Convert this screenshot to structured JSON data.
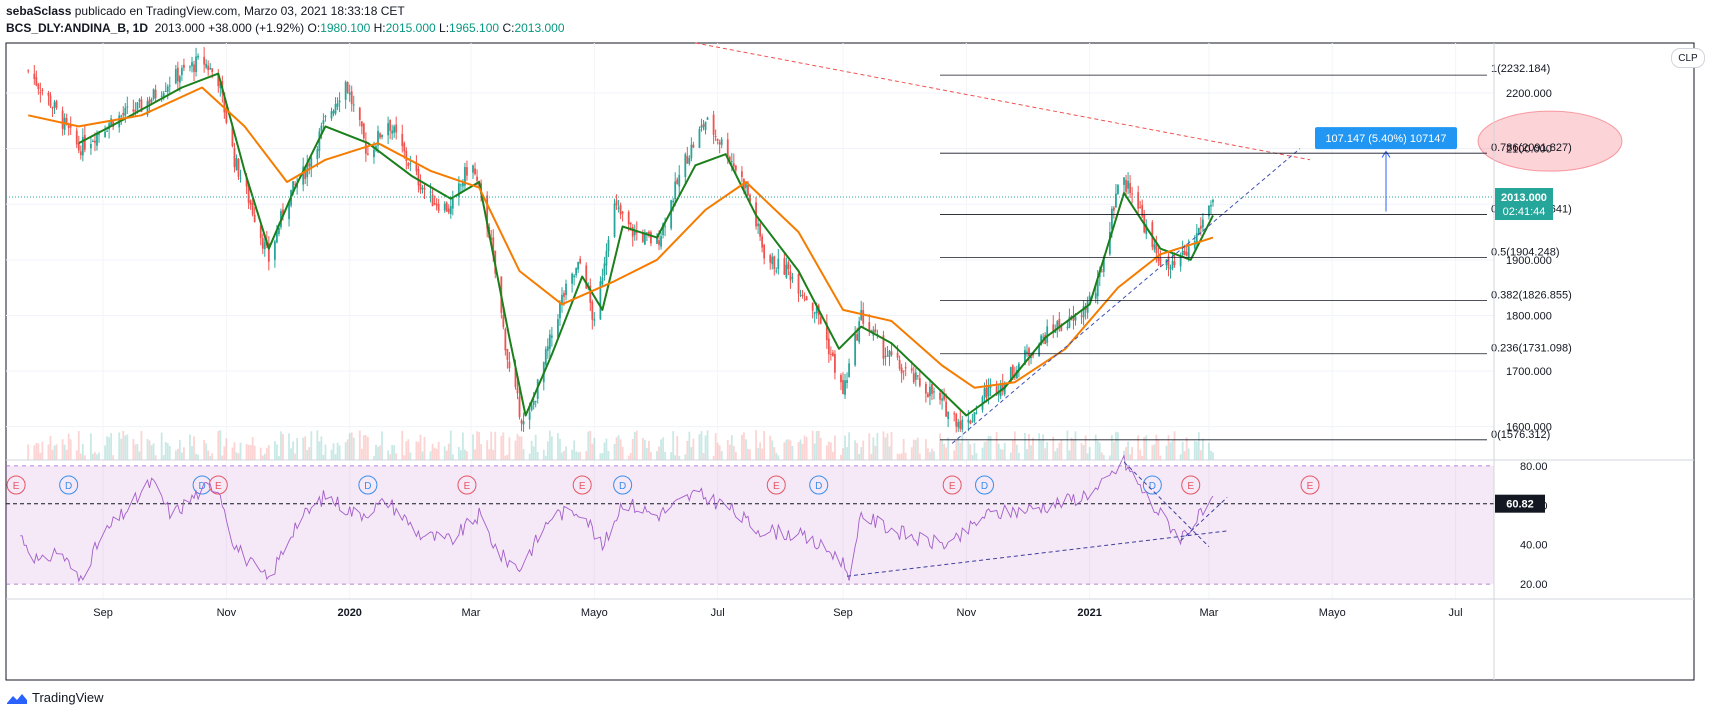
{
  "header": {
    "author": "sebaSclass",
    "published": "publicado en TradingView.com, Marzo 03, 2021 18:33:18 CET",
    "symbol": "BCS_DLY:ANDINA_B, 1D",
    "last": "2013.000",
    "change": "+38.000 (+1.92%)",
    "o_label": "O:",
    "o": "1980.100",
    "h_label": "H:",
    "h": "2015.000",
    "l_label": "L:",
    "l": "1965.100",
    "c_label": "C:",
    "c": "2013.000"
  },
  "currency_badge": "CLP",
  "price_tag": {
    "price": "2013.000",
    "countdown": "02:41:44"
  },
  "rsi_tag": "60.82",
  "measure_label": "107.147 (5.40%) 107147",
  "footer": {
    "brand": "TradingView"
  },
  "colors": {
    "up": "#26a69a",
    "down": "#ef5350",
    "ema_fast": "#1b7f1b",
    "ema_slow": "#f57c00",
    "rsi": "#a35fc9",
    "accent": "#2962ff"
  },
  "chart_data": [
    {
      "type": "candlestick",
      "y_axis_ticks": [
        "1600.000",
        "1700.000",
        "1800.000",
        "1900.000",
        "2000.000",
        "2100.000",
        "2200.000"
      ],
      "ylim": [
        1540,
        2290
      ],
      "x_axis_ticks": [
        "Sep",
        "Nov",
        "2020",
        "Mar",
        "Mayo",
        "Jul",
        "Sep",
        "Nov",
        "2021",
        "Mar",
        "Mayo",
        "Jul"
      ],
      "last_price": 2013.0,
      "close_path": [
        [
          "2019-07-26",
          2240
        ],
        [
          "2019-08-05",
          2190
        ],
        [
          "2019-08-20",
          2100
        ],
        [
          "2019-09-05",
          2150
        ],
        [
          "2019-09-20",
          2175
        ],
        [
          "2019-10-05",
          2225
        ],
        [
          "2019-10-20",
          2260
        ],
        [
          "2019-10-28",
          2225
        ],
        [
          "2019-11-05",
          2080
        ],
        [
          "2019-11-15",
          1980
        ],
        [
          "2019-11-22",
          1900
        ],
        [
          "2019-12-01",
          2010
        ],
        [
          "2019-12-10",
          2060
        ],
        [
          "2019-12-20",
          2150
        ],
        [
          "2019-12-30",
          2220
        ],
        [
          "2020-01-10",
          2090
        ],
        [
          "2020-01-20",
          2150
        ],
        [
          "2020-02-01",
          2060
        ],
        [
          "2020-02-10",
          2010
        ],
        [
          "2020-02-20",
          1990
        ],
        [
          "2020-03-01",
          2080
        ],
        [
          "2020-03-10",
          1950
        ],
        [
          "2020-03-20",
          1700
        ],
        [
          "2020-03-28",
          1590
        ],
        [
          "2020-04-05",
          1700
        ],
        [
          "2020-04-15",
          1830
        ],
        [
          "2020-04-25",
          1900
        ],
        [
          "2020-05-01",
          1780
        ],
        [
          "2020-05-10",
          2000
        ],
        [
          "2020-05-20",
          1950
        ],
        [
          "2020-06-01",
          1930
        ],
        [
          "2020-06-15",
          2080
        ],
        [
          "2020-06-25",
          2150
        ],
        [
          "2020-07-05",
          2100
        ],
        [
          "2020-07-15",
          2030
        ],
        [
          "2020-07-25",
          1900
        ],
        [
          "2020-08-05",
          1880
        ],
        [
          "2020-08-20",
          1800
        ],
        [
          "2020-09-01",
          1660
        ],
        [
          "2020-09-10",
          1800
        ],
        [
          "2020-09-20",
          1740
        ],
        [
          "2020-10-01",
          1700
        ],
        [
          "2020-10-15",
          1660
        ],
        [
          "2020-10-25",
          1620
        ],
        [
          "2020-11-01",
          1600
        ],
        [
          "2020-11-10",
          1660
        ],
        [
          "2020-11-20",
          1680
        ],
        [
          "2020-12-01",
          1730
        ],
        [
          "2020-12-15",
          1780
        ],
        [
          "2020-12-25",
          1790
        ],
        [
          "2021-01-05",
          1850
        ],
        [
          "2021-01-15",
          2040
        ],
        [
          "2021-01-22",
          2030
        ],
        [
          "2021-02-01",
          1920
        ],
        [
          "2021-02-10",
          1880
        ],
        [
          "2021-02-20",
          1920
        ],
        [
          "2021-03-03",
          2013
        ]
      ],
      "series": [
        {
          "name": "",
          "kind": "ema_fast",
          "points": [
            [
              "2019-08-20",
              2110
            ],
            [
              "2019-09-10",
              2150
            ],
            [
              "2019-10-10",
              2210
            ],
            [
              "2019-10-28",
              2235
            ],
            [
              "2019-11-10",
              2060
            ],
            [
              "2019-11-22",
              1920
            ],
            [
              "2019-12-05",
              2030
            ],
            [
              "2019-12-20",
              2140
            ],
            [
              "2020-01-10",
              2110
            ],
            [
              "2020-02-01",
              2050
            ],
            [
              "2020-02-20",
              2010
            ],
            [
              "2020-03-05",
              2040
            ],
            [
              "2020-03-20",
              1760
            ],
            [
              "2020-03-28",
              1620
            ],
            [
              "2020-04-10",
              1730
            ],
            [
              "2020-04-25",
              1870
            ],
            [
              "2020-05-05",
              1810
            ],
            [
              "2020-05-15",
              1960
            ],
            [
              "2020-06-01",
              1940
            ],
            [
              "2020-06-20",
              2070
            ],
            [
              "2020-07-05",
              2090
            ],
            [
              "2020-07-20",
              1980
            ],
            [
              "2020-08-10",
              1880
            ],
            [
              "2020-08-30",
              1740
            ],
            [
              "2020-09-10",
              1780
            ],
            [
              "2020-09-25",
              1750
            ],
            [
              "2020-10-15",
              1680
            ],
            [
              "2020-11-01",
              1620
            ],
            [
              "2020-11-20",
              1670
            ],
            [
              "2020-12-10",
              1760
            ],
            [
              "2021-01-01",
              1820
            ],
            [
              "2021-01-18",
              2020
            ],
            [
              "2021-02-05",
              1920
            ],
            [
              "2021-02-20",
              1900
            ],
            [
              "2021-03-03",
              1980
            ]
          ]
        },
        {
          "name": "",
          "kind": "ema_slow",
          "points": [
            [
              "2019-07-26",
              2160
            ],
            [
              "2019-08-20",
              2140
            ],
            [
              "2019-09-20",
              2160
            ],
            [
              "2019-10-20",
              2210
            ],
            [
              "2019-11-10",
              2140
            ],
            [
              "2019-12-01",
              2040
            ],
            [
              "2019-12-20",
              2080
            ],
            [
              "2020-01-15",
              2110
            ],
            [
              "2020-02-10",
              2060
            ],
            [
              "2020-03-05",
              2030
            ],
            [
              "2020-03-25",
              1880
            ],
            [
              "2020-04-15",
              1820
            ],
            [
              "2020-05-10",
              1860
            ],
            [
              "2020-06-01",
              1900
            ],
            [
              "2020-06-25",
              1990
            ],
            [
              "2020-07-15",
              2040
            ],
            [
              "2020-08-10",
              1950
            ],
            [
              "2020-09-01",
              1810
            ],
            [
              "2020-09-25",
              1790
            ],
            [
              "2020-10-20",
              1710
            ],
            [
              "2020-11-05",
              1670
            ],
            [
              "2020-11-25",
              1680
            ],
            [
              "2020-12-20",
              1740
            ],
            [
              "2021-01-15",
              1850
            ],
            [
              "2021-02-05",
              1910
            ],
            [
              "2021-03-03",
              1940
            ]
          ]
        }
      ],
      "fibonacci": [
        {
          "label": "1(2232.184)",
          "price": 2232.184
        },
        {
          "label": "0.786(2091.827)",
          "price": 2091.827
        },
        {
          "label": "0.618(1981.641)",
          "price": 1981.641
        },
        {
          "label": "0.5(1904.248)",
          "price": 1904.248
        },
        {
          "label": "0.382(1826.855)",
          "price": 1826.855
        },
        {
          "label": "0.236(1731.098)",
          "price": 1731.098
        },
        {
          "label": "0(1576.312)",
          "price": 1576.312
        }
      ],
      "events": [
        {
          "label": "E",
          "date": "2019-07-20"
        },
        {
          "label": "D",
          "date": "2019-08-15"
        },
        {
          "label": "D",
          "date": "2019-10-20"
        },
        {
          "label": "E",
          "date": "2019-10-28"
        },
        {
          "label": "D",
          "date": "2020-01-10"
        },
        {
          "label": "E",
          "date": "2020-02-28"
        },
        {
          "label": "E",
          "date": "2020-04-25"
        },
        {
          "label": "D",
          "date": "2020-05-15"
        },
        {
          "label": "E",
          "date": "2020-07-30"
        },
        {
          "label": "D",
          "date": "2020-08-20"
        },
        {
          "label": "E",
          "date": "2020-10-25"
        },
        {
          "label": "D",
          "date": "2020-11-10"
        },
        {
          "label": "D",
          "date": "2021-02-01"
        },
        {
          "label": "E",
          "date": "2021-02-20"
        },
        {
          "label": "E",
          "date": "2021-04-20"
        }
      ]
    },
    {
      "type": "line",
      "y_axis_ticks": [
        "20.00",
        "40.00",
        "60.00",
        "80.00"
      ],
      "ylim": [
        17,
        83
      ],
      "levels": [
        20,
        80
      ],
      "last_value": 60.82,
      "series": [
        {
          "name": "",
          "kind": "rsi",
          "points": [
            [
              "2019-07-20",
              48
            ],
            [
              "2019-08-01",
              30
            ],
            [
              "2019-08-10",
              38
            ],
            [
              "2019-08-20",
              22
            ],
            [
              "2019-09-01",
              45
            ],
            [
              "2019-09-15",
              60
            ],
            [
              "2019-09-25",
              72
            ],
            [
              "2019-10-05",
              55
            ],
            [
              "2019-10-20",
              68
            ],
            [
              "2019-10-28",
              70
            ],
            [
              "2019-11-05",
              40
            ],
            [
              "2019-11-15",
              28
            ],
            [
              "2019-11-22",
              22
            ],
            [
              "2019-12-05",
              50
            ],
            [
              "2019-12-20",
              65
            ],
            [
              "2020-01-05",
              55
            ],
            [
              "2020-01-20",
              62
            ],
            [
              "2020-02-05",
              45
            ],
            [
              "2020-02-20",
              42
            ],
            [
              "2020-03-05",
              55
            ],
            [
              "2020-03-15",
              35
            ],
            [
              "2020-03-25",
              28
            ],
            [
              "2020-04-10",
              55
            ],
            [
              "2020-04-25",
              58
            ],
            [
              "2020-05-05",
              38
            ],
            [
              "2020-05-15",
              62
            ],
            [
              "2020-06-01",
              55
            ],
            [
              "2020-06-20",
              66
            ],
            [
              "2020-07-05",
              60
            ],
            [
              "2020-07-20",
              48
            ],
            [
              "2020-08-10",
              45
            ],
            [
              "2020-08-30",
              34
            ],
            [
              "2020-09-05",
              24
            ],
            [
              "2020-09-10",
              55
            ],
            [
              "2020-09-25",
              48
            ],
            [
              "2020-10-10",
              42
            ],
            [
              "2020-10-25",
              40
            ],
            [
              "2020-11-10",
              55
            ],
            [
              "2020-12-01",
              58
            ],
            [
              "2020-12-20",
              62
            ],
            [
              "2021-01-05",
              68
            ],
            [
              "2021-01-18",
              82
            ],
            [
              "2021-02-01",
              60
            ],
            [
              "2021-02-15",
              44
            ],
            [
              "2021-02-25",
              55
            ],
            [
              "2021-03-03",
              60.82
            ]
          ]
        }
      ]
    }
  ],
  "x_axis_labels": [
    "Sep",
    "Nov",
    "2020",
    "Mar",
    "Mayo",
    "Jul",
    "Sep",
    "Nov",
    "2021",
    "Mar",
    "Mayo",
    "Jul"
  ]
}
